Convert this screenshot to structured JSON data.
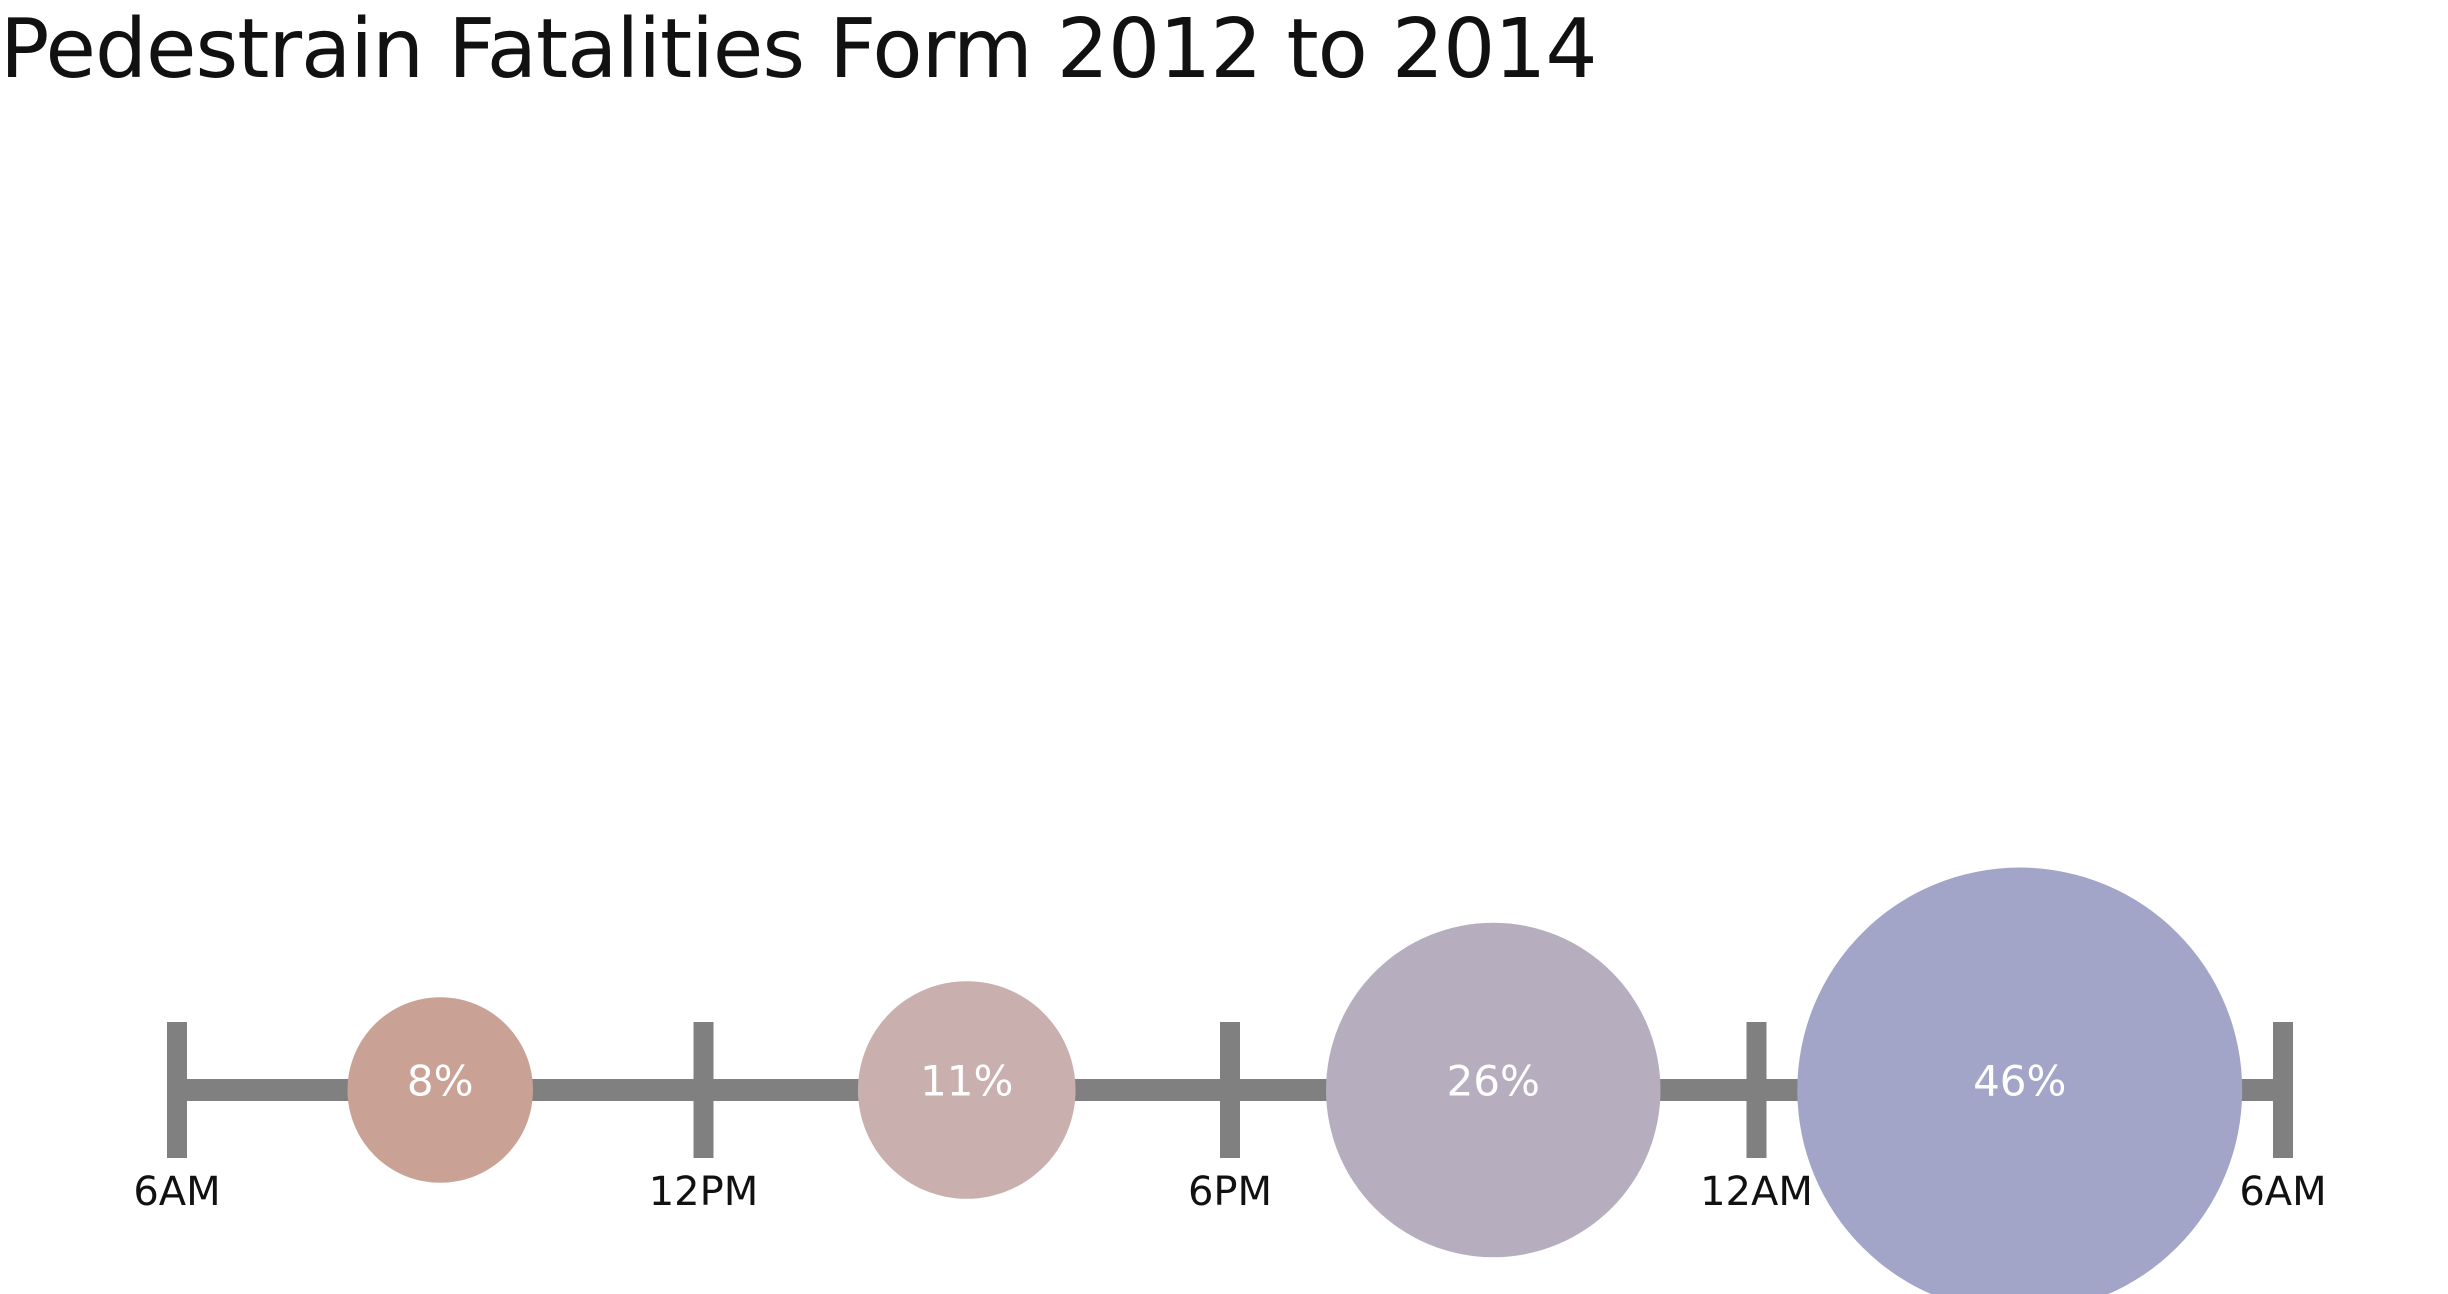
{
  "chart_data": {
    "type": "bubble-timeline",
    "title": "Pedestrain Fatalities Form 2012 to 2014",
    "ticks": [
      "6AM",
      "12PM",
      "6PM",
      "12AM",
      "6AM"
    ],
    "categories": [
      "6AM-12PM",
      "12PM-6PM",
      "6PM-12AM",
      "12AM-6AM"
    ],
    "values": [
      8,
      11,
      26,
      46
    ],
    "labels": [
      "8%",
      "11%",
      "26%",
      "46%"
    ],
    "unit": "%",
    "colors": {
      "axis": "#808080",
      "bubbles": [
        "#c9a295",
        "#c9b0ae",
        "#b6aebf",
        "#a3a5c8"
      ],
      "bubble_text": "#ffffff",
      "tick_text": "#111111"
    }
  }
}
